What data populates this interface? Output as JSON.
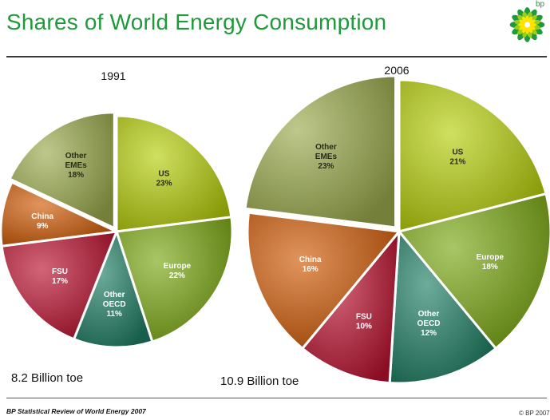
{
  "header": {
    "title": "Shares of World Energy Consumption",
    "logo_text": "bp"
  },
  "footer": {
    "source": "BP Statistical Review of World Energy 2007",
    "copyright": "© BP 2007"
  },
  "colors": {
    "title": "#1f9a3a",
    "US": "#b5cd0a",
    "Europe": "#7aa814",
    "Other OECD": "#1f7e63",
    "FSU": "#b9112f",
    "China": "#cf5a06",
    "Other EMEs": "#9aaa4c"
  },
  "chart_data": [
    {
      "type": "pie",
      "title": "1991",
      "total_label": "8.2 Billion toe",
      "slices": [
        {
          "label": "US",
          "value": 23,
          "text": "23%"
        },
        {
          "label": "Europe",
          "value": 22,
          "text": "22%"
        },
        {
          "label": "Other OECD",
          "value": 11,
          "text": "11%"
        },
        {
          "label": "FSU",
          "value": 17,
          "text": "17%"
        },
        {
          "label": "China",
          "value": 9,
          "text": "9%"
        },
        {
          "label": "Other EMEs",
          "value": 18,
          "text": "18%"
        }
      ]
    },
    {
      "type": "pie",
      "title": "2006",
      "total_label": "10.9 Billion toe",
      "slices": [
        {
          "label": "US",
          "value": 21,
          "text": "21%"
        },
        {
          "label": "Europe",
          "value": 18,
          "text": "18%"
        },
        {
          "label": "Other OECD",
          "value": 12,
          "text": "12%"
        },
        {
          "label": "FSU",
          "value": 10,
          "text": "10%"
        },
        {
          "label": "China",
          "value": 16,
          "text": "16%"
        },
        {
          "label": "Other EMEs",
          "value": 23,
          "text": "23%"
        }
      ]
    }
  ]
}
